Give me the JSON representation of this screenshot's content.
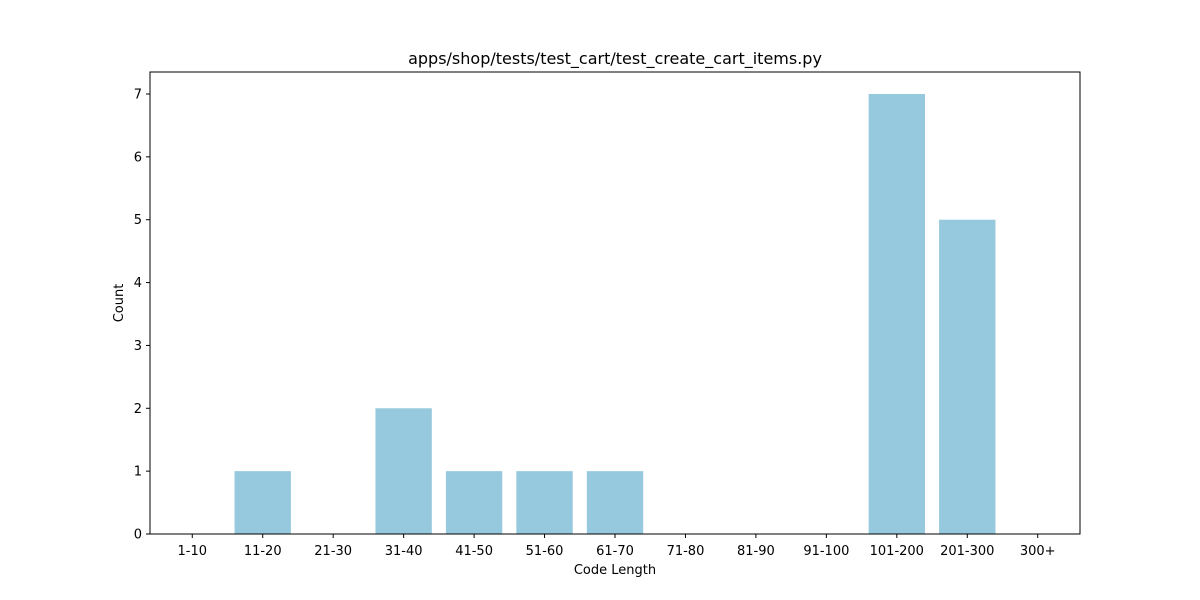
{
  "chart_data": {
    "type": "bar",
    "title": "apps/shop/tests/test_cart/test_create_cart_items.py",
    "xlabel": "Code Length",
    "ylabel": "Count",
    "categories": [
      "1-10",
      "11-20",
      "21-30",
      "31-40",
      "41-50",
      "51-60",
      "61-70",
      "71-80",
      "81-90",
      "91-100",
      "101-200",
      "201-300",
      "300+"
    ],
    "values": [
      0,
      1,
      0,
      2,
      1,
      1,
      1,
      0,
      0,
      0,
      7,
      5,
      0
    ],
    "ylim": [
      0,
      7.35
    ],
    "yticks": [
      "0",
      "1",
      "2",
      "3",
      "4",
      "5",
      "6",
      "7"
    ],
    "grid": false,
    "legend": "none",
    "bar_color": "#96c9dd",
    "axis_color": "#000000"
  }
}
